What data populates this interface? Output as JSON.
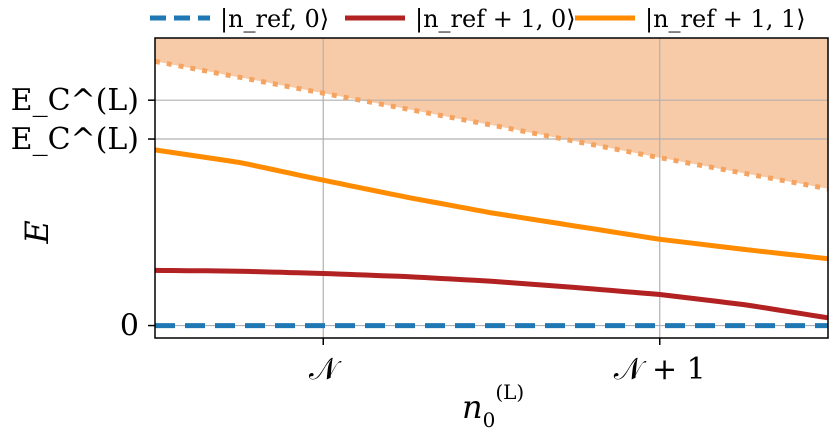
{
  "chart_data": {
    "type": "line",
    "xlabel": "n_0^(L)",
    "ylabel": "E",
    "xlim": [
      0.5,
      2.5
    ],
    "ylim": [
      -0.08,
      1.85
    ],
    "grid": true,
    "legend_placement": "top",
    "x_ticks": [
      {
        "value": 1,
        "label": "𝒩"
      },
      {
        "value": 2,
        "label": "𝒩 + 1"
      }
    ],
    "y_ticks": [
      {
        "value": 0,
        "label": "0"
      },
      {
        "value": 1.2,
        "label": "Δ − E_C^(L)"
      },
      {
        "value": 1.45,
        "label": "Δ + E_C^(L)"
      }
    ],
    "series": [
      {
        "name": "|n_ref, 0⟩",
        "color": "#1f77b4",
        "style": "dashed",
        "x": [
          0.5,
          2.5
        ],
        "y": [
          0,
          0
        ]
      },
      {
        "name": "|n_ref + 1, 0⟩",
        "color": "#b22222",
        "style": "solid",
        "x": [
          0.5,
          0.75,
          1.0,
          1.25,
          1.5,
          1.75,
          2.0,
          2.25,
          2.5
        ],
        "y": [
          0.355,
          0.35,
          0.335,
          0.315,
          0.285,
          0.245,
          0.2,
          0.135,
          0.05
        ]
      },
      {
        "name": "|n_ref + 1, 1⟩",
        "color": "#ff8c00",
        "style": "solid",
        "x": [
          0.5,
          0.75,
          1.0,
          1.25,
          1.5,
          1.75,
          2.0,
          2.25,
          2.5
        ],
        "y": [
          1.13,
          1.05,
          0.935,
          0.825,
          0.725,
          0.64,
          0.555,
          0.49,
          0.43
        ]
      },
      {
        "name": "",
        "color": "#f4a460",
        "style": "dotted",
        "x": [
          0.5,
          1.0,
          1.5,
          2.0,
          2.5
        ],
        "y": [
          1.7,
          1.495,
          1.29,
          1.08,
          0.88
        ]
      }
    ],
    "shaded_region": {
      "color": "#f8cba8",
      "boundary_series": 3,
      "to": "top"
    }
  }
}
